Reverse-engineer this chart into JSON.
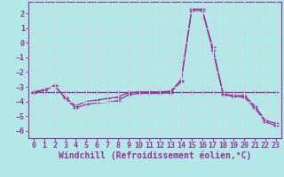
{
  "background_color": "#b2e8e8",
  "grid_color": "#c8dede",
  "line_color": "#993399",
  "marker": "+",
  "xlabel": "Windchill (Refroidissement éolien,°C)",
  "xlim": [
    -0.5,
    23.5
  ],
  "ylim": [
    -6.5,
    2.8
  ],
  "xticks": [
    0,
    1,
    2,
    3,
    4,
    5,
    6,
    7,
    8,
    9,
    10,
    11,
    12,
    13,
    14,
    15,
    16,
    17,
    18,
    19,
    20,
    21,
    22,
    23
  ],
  "yticks": [
    -6,
    -5,
    -4,
    -3,
    -2,
    -1,
    0,
    1,
    2
  ],
  "series": [
    {
      "x": [
        0,
        1,
        2,
        3,
        4,
        5,
        6,
        7,
        8,
        9,
        10,
        11,
        12,
        13,
        14,
        15,
        16,
        17,
        18,
        19,
        20,
        21,
        22,
        23
      ],
      "y": [
        -3.4,
        -3.25,
        -2.9,
        -3.8,
        -4.45,
        -4.2,
        -4.1,
        -4.05,
        -3.95,
        -3.55,
        -3.45,
        -3.45,
        -3.45,
        -3.4,
        -2.65,
        2.2,
        2.2,
        -0.5,
        -3.55,
        -3.65,
        -3.7,
        -4.45,
        -5.4,
        -5.65
      ]
    },
    {
      "x": [
        0,
        1,
        2,
        3,
        4,
        5,
        6,
        7,
        8,
        9,
        10,
        11,
        12,
        13,
        14,
        15,
        16,
        17,
        18,
        19,
        20,
        21,
        22,
        23
      ],
      "y": [
        -3.35,
        -3.2,
        -2.95,
        -3.75,
        -4.3,
        -4.0,
        -3.9,
        -3.8,
        -3.7,
        -3.4,
        -3.35,
        -3.35,
        -3.35,
        -3.3,
        -2.55,
        2.3,
        2.3,
        -0.3,
        -3.5,
        -3.6,
        -3.6,
        -4.3,
        -5.3,
        -5.5
      ]
    },
    {
      "x": [
        0,
        1,
        2,
        3,
        4,
        5,
        6,
        7,
        8,
        9,
        10,
        11,
        12,
        13,
        14,
        15,
        16,
        17,
        18,
        19,
        20,
        21,
        22,
        23
      ],
      "y": [
        -3.35,
        -3.35,
        -3.35,
        -3.35,
        -3.35,
        -3.35,
        -3.35,
        -3.35,
        -3.35,
        -3.35,
        -3.35,
        -3.35,
        -3.35,
        -3.35,
        -3.35,
        -3.35,
        -3.35,
        -3.35,
        -3.35,
        -3.35,
        -3.35,
        -3.35,
        -3.35,
        -3.35
      ]
    }
  ],
  "tick_fontsize": 6,
  "label_fontsize": 7
}
